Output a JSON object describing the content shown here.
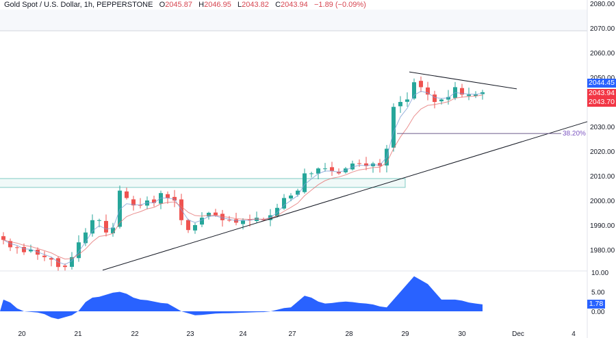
{
  "header": {
    "symbol": "Gold Spot / U.S. Dollar, 1h, PEPPERSTONE",
    "open_label": "O",
    "open": "2045.87",
    "high_label": "H",
    "high": "2046.95",
    "low_label": "L",
    "low": "2043.82",
    "close_label": "C",
    "close": "2043.94",
    "change": "−1.89 (−0.09%)"
  },
  "price_tags": {
    "blue": "2044.45",
    "red1": "2043.94",
    "red2": "2043.70",
    "osc": "1.78"
  },
  "colors": {
    "up": "#26a69a",
    "down": "#ef5350",
    "accent": "#2962ff",
    "tag_red": "#f23645",
    "osc": "#2962ff"
  },
  "chart_data": {
    "type": "candlestick",
    "timeframe": "1h (drawn as 3h approximations)",
    "ylim": [
      1975,
      2080
    ],
    "y_ticks": [
      1980,
      1990,
      2000,
      2010,
      2020,
      2030,
      2040,
      2050,
      2060,
      2070,
      2080
    ],
    "x_ticks": [
      {
        "label": "20",
        "bar": 2.7
      },
      {
        "label": "21",
        "bar": 10.9
      },
      {
        "label": "22",
        "bar": 19.2
      },
      {
        "label": "23",
        "bar": 27.3
      },
      {
        "label": "24",
        "bar": 35
      },
      {
        "label": "27",
        "bar": 42.2
      },
      {
        "label": "28",
        "bar": 50.5
      },
      {
        "label": "29",
        "bar": 58.7
      },
      {
        "label": "30",
        "bar": 67
      },
      {
        "label": "Dec",
        "bar": 75.2
      },
      {
        "label": "4",
        "bar": 83.3
      }
    ],
    "closes": [
      1984,
      1981,
      1981,
      1979,
      1980,
      1978,
      1977,
      1976,
      1973,
      1973,
      1977,
      1983,
      1987,
      1992,
      1992,
      1987,
      1989,
      2004,
      2001,
      1998,
      1998,
      2000,
      1999,
      2003,
      2001,
      2000,
      1992,
      1988,
      1990,
      1993,
      1995,
      1994,
      1992,
      1992,
      1991,
      1992,
      1992,
      1993,
      1992,
      1994,
      1997,
      2001,
      2002,
      2004,
      2011,
      2011,
      2013,
      2013,
      2012,
      2011,
      2013,
      2015,
      2015,
      2014,
      2015,
      2014,
      2021,
      2038,
      2040,
      2041,
      2048,
      2046,
      2043,
      2040,
      2041,
      2042,
      2046,
      2043,
      2043,
      2043,
      2043.94
    ],
    "drawings": {
      "uptrend_line": {
        "from": [
          14.5,
          1971.7
        ],
        "to": [
          85.3,
          2032
        ]
      },
      "descending_line": {
        "from": [
          59.3,
          2052.2
        ],
        "to": [
          75,
          2045.3
        ]
      },
      "fib_level": {
        "label": "38.20%",
        "price": 2027.2,
        "from_bar": 57.5,
        "to_bar": 85
      },
      "support_zone": {
        "top": 2008.9,
        "bottom": 2005.3,
        "from_bar": -1,
        "to_bar": 58.7
      }
    },
    "oscillator": {
      "ylim": [
        -3,
        11
      ],
      "y_ticks": [
        "10.00",
        "5.00",
        "0.00"
      ],
      "anchors": [
        [
          0,
          3
        ],
        [
          3,
          0
        ],
        [
          5,
          -0.3
        ],
        [
          8,
          -2
        ],
        [
          10,
          -1
        ],
        [
          13,
          3.5
        ],
        [
          17,
          5
        ],
        [
          20,
          3
        ],
        [
          24,
          2
        ],
        [
          26,
          0
        ],
        [
          28,
          -1
        ],
        [
          32,
          -0.5
        ],
        [
          38,
          -0.2
        ],
        [
          42,
          1
        ],
        [
          44,
          4
        ],
        [
          47,
          2
        ],
        [
          50,
          2.5
        ],
        [
          53,
          2
        ],
        [
          56,
          1
        ],
        [
          58,
          5
        ],
        [
          60,
          9
        ],
        [
          62,
          7
        ],
        [
          64,
          3
        ],
        [
          66,
          3
        ],
        [
          69,
          2
        ],
        [
          70,
          1.78
        ]
      ]
    }
  }
}
